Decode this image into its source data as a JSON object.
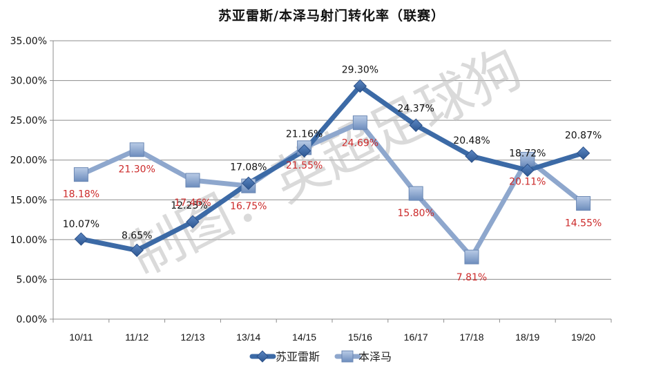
{
  "chart_data": {
    "type": "line",
    "title": "苏亚雷斯/本泽马射门转化率（联赛）",
    "xlabel": "",
    "ylabel": "",
    "categories": [
      "10/11",
      "11/12",
      "12/13",
      "13/14",
      "14/15",
      "15/16",
      "16/17",
      "17/18",
      "18/19",
      "19/20"
    ],
    "series": [
      {
        "name": "苏亚雷斯",
        "values": [
          10.07,
          8.65,
          12.23,
          17.08,
          21.16,
          29.3,
          24.37,
          20.48,
          18.72,
          20.87
        ],
        "labels": [
          "10.07%",
          "8.65%",
          "12.23%",
          "17.08%",
          "21.16%",
          "29.30%",
          "24.37%",
          "20.48%",
          "18.72%",
          "20.87%"
        ],
        "color": "#3c6aa6",
        "marker": "diamond",
        "label_color": "#111111"
      },
      {
        "name": "本泽马",
        "values": [
          18.18,
          21.3,
          17.46,
          16.75,
          21.55,
          24.69,
          15.8,
          7.81,
          20.11,
          14.55
        ],
        "labels": [
          "18.18%",
          "21.30%",
          "17.46%",
          "16.75%",
          "21.55%",
          "24.69%",
          "15.80%",
          "7.81%",
          "20.11%",
          "14.55%"
        ],
        "color": "#8ea7cd",
        "marker": "square",
        "label_color": "#cc2a2a"
      }
    ],
    "yticks": [
      "0.00%",
      "5.00%",
      "10.00%",
      "15.00%",
      "20.00%",
      "25.00%",
      "30.00%",
      "35.00%"
    ],
    "ylim": [
      0,
      35
    ],
    "grid": true,
    "legend_position": "bottom",
    "watermark": "制图：英超足球狗"
  }
}
